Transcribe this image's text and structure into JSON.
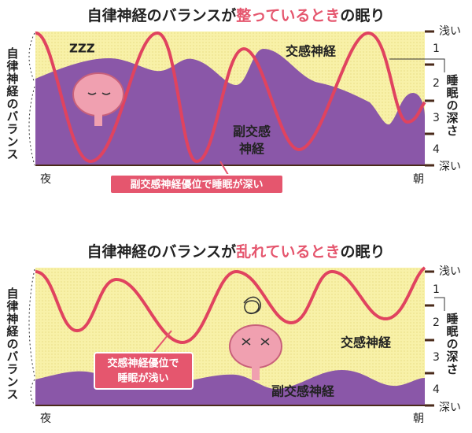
{
  "panels": [
    {
      "title": [
        "自律神経のバランスが",
        "整っているとき",
        "の眠り"
      ],
      "left_label": "自律神経のバランス",
      "right_label": "睡眠の深さ",
      "depth_top": "浅い",
      "depth_bottom": "深い",
      "levels": [
        "1",
        "2",
        "3",
        "4"
      ],
      "x_start": "夜",
      "x_end": "朝",
      "sympathetic": [
        "交感神経"
      ],
      "parasympathetic": [
        "副交感",
        "神経"
      ],
      "callout": [
        "副交感神経優位で睡眠が深い"
      ]
    },
    {
      "title": [
        "自律神経のバランスが",
        "乱れているとき",
        "の眠り"
      ],
      "left_label": "自律神経のバランス",
      "right_label": "睡眠の深さ",
      "depth_top": "浅い",
      "depth_bottom": "深い",
      "levels": [
        "1",
        "2",
        "3",
        "4"
      ],
      "x_start": "夜",
      "x_end": "朝",
      "sympathetic": [
        "交感神経"
      ],
      "parasympathetic": [
        "副交感神経"
      ],
      "callout": [
        "交感神経優位で",
        "睡眠が浅い"
      ]
    }
  ]
}
